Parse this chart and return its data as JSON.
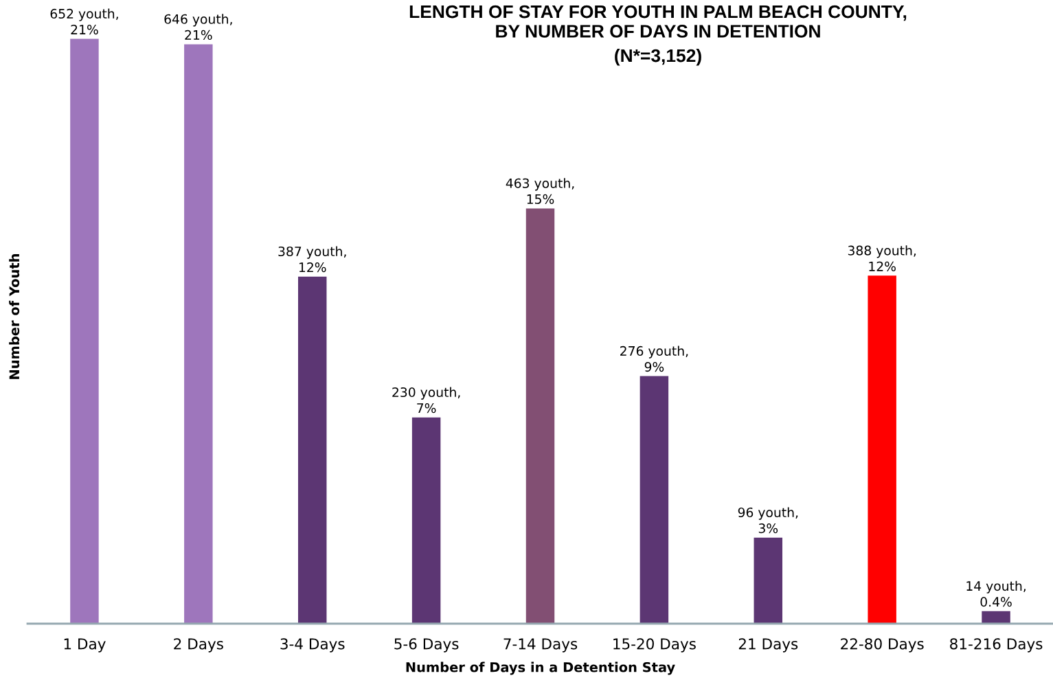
{
  "chart_data": {
    "type": "bar",
    "title": "LENGTH OF STAY FOR YOUTH IN PALM BEACH COUNTY,\nBY NUMBER OF DAYS IN DETENTION",
    "subtitle": "(N*=3,152)",
    "xlabel": "Number of Days in a Detention Stay",
    "ylabel": "Number of Youth",
    "categories": [
      "1 Day",
      "2 Days",
      "3-4 Days",
      "5-6 Days",
      "7-14 Days",
      "15-20 Days",
      "21 Days",
      "22-80 Days",
      "81-216 Days"
    ],
    "values": [
      652,
      646,
      387,
      230,
      463,
      276,
      96,
      388,
      14
    ],
    "colors": [
      "#9e76bc",
      "#9e76bc",
      "#5c3673",
      "#5c3673",
      "#824f73",
      "#5c3673",
      "#5c3673",
      "#ff0000",
      "#5c3673"
    ],
    "value_labels": [
      "652 youth,\n21%",
      "646 youth,\n21%",
      "387 youth,\n12%",
      "230 youth,\n7%",
      "463 youth,\n15%",
      "276 youth,\n9%",
      "96 youth,\n3%",
      "388 youth,\n12%",
      "14 youth,\n0.4%"
    ],
    "tick_labels": "x"
  }
}
